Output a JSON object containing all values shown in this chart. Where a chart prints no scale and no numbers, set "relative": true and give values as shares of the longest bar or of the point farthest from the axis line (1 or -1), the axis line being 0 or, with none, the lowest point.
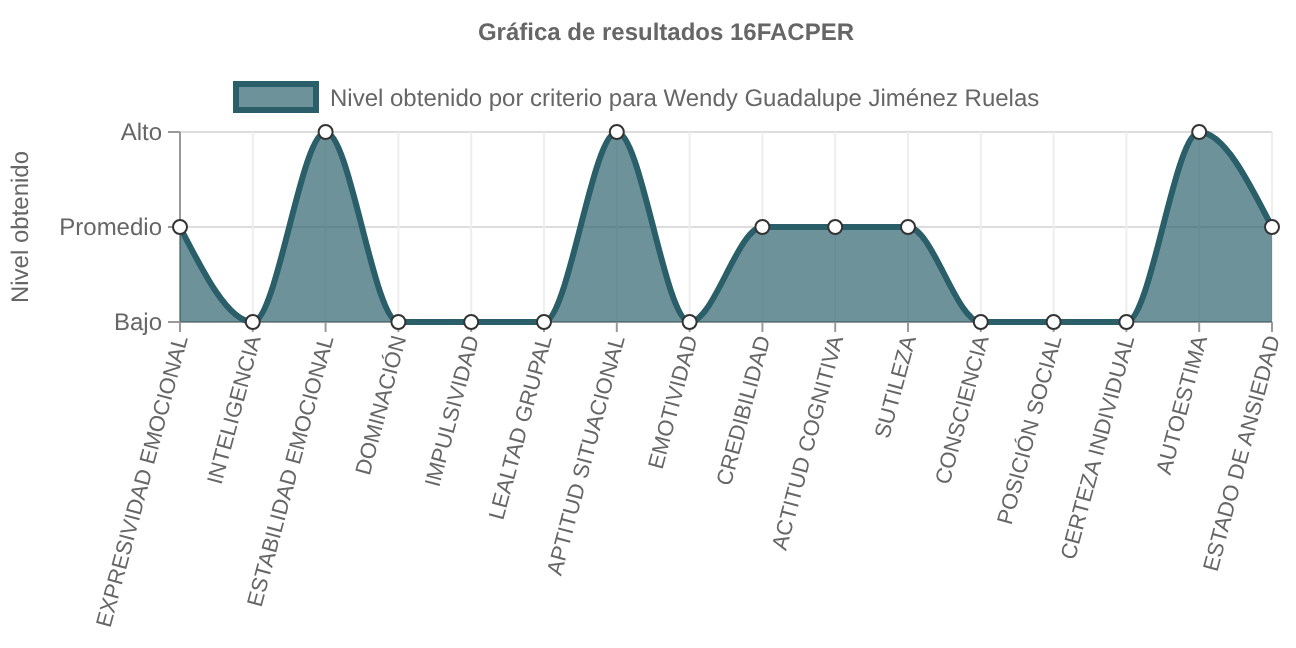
{
  "chart_data": {
    "type": "area",
    "title": "Gráfica de resultados 16FACPER",
    "ylabel": "Nivel obtenido",
    "categories": [
      "EXPRESIVIDAD EMOCIONAL",
      "INTELIGENCIA",
      "ESTABILIDAD EMOCIONAL",
      "DOMINACIÓN",
      "IMPULSIVIDAD",
      "LEALTAD GRUPAL",
      "APTITUD SITUACIONAL",
      "EMOTIVIDAD",
      "CREDIBILIDAD",
      "ACTITUD COGNITIVA",
      "SUTILEZA",
      "CONSCIENCIA",
      "POSICIÓN SOCIAL",
      "CERTEZA INDIVIDUAL",
      "AUTOESTIMA",
      "ESTADO DE ANSIEDAD"
    ],
    "series": [
      {
        "name": "Nivel obtenido por criterio para Wendy Guadalupe Jiménez Ruelas",
        "color": "#2a5f6a",
        "values": [
          0.5,
          0,
          1,
          0,
          0,
          0,
          1,
          0,
          0.5,
          0.5,
          0.5,
          0,
          0,
          0,
          1,
          0.5
        ]
      }
    ],
    "relative": true,
    "y_categories": [
      "Alto",
      "Promedio",
      "Bajo"
    ],
    "grid": true,
    "legend": "top",
    "marker": "circle"
  }
}
